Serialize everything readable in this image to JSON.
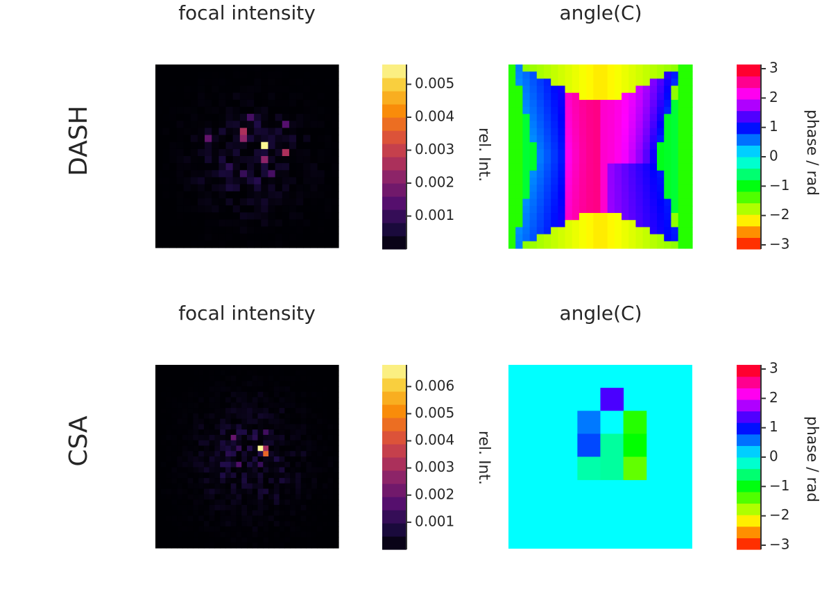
{
  "chart_data": [
    {
      "type": "heatmap",
      "row_label": "DASH",
      "title": "focal intensity",
      "colormap": "inferno",
      "colorbar": {
        "label": "rel. Int.",
        "range": [
          0,
          0.0056
        ],
        "ticks": [
          "0.001",
          "0.002",
          "0.003",
          "0.004",
          "0.005"
        ],
        "tick_values": [
          0.001,
          0.002,
          0.003,
          0.004,
          0.005
        ]
      },
      "grid": [
        26,
        26
      ],
      "peak": {
        "row": 11,
        "col": 15,
        "value": 0.0055
      },
      "bright_spots": [
        {
          "row": 9,
          "col": 12,
          "value": 0.0026
        },
        {
          "row": 10,
          "col": 12,
          "value": 0.0022
        },
        {
          "row": 12,
          "col": 18,
          "value": 0.0026
        },
        {
          "row": 13,
          "col": 15,
          "value": 0.0022
        },
        {
          "row": 10,
          "col": 7,
          "value": 0.0016
        },
        {
          "row": 8,
          "col": 18,
          "value": 0.0014
        },
        {
          "row": 15,
          "col": 16,
          "value": 0.0012
        },
        {
          "row": 7,
          "col": 13,
          "value": 0.0012
        }
      ]
    },
    {
      "type": "heatmap",
      "row_label": "DASH",
      "title": "angle(C)",
      "colormap": "hsv",
      "colorbar": {
        "label": "phase / rad",
        "range": [
          -3.1416,
          3.1416
        ],
        "ticks": [
          "3",
          "2",
          "1",
          "0",
          "−1",
          "−2",
          "−3"
        ],
        "tick_values": [
          3,
          2,
          1,
          0,
          -1,
          -2,
          -3
        ]
      },
      "grid": [
        26,
        26
      ],
      "description_values": {
        "center_phase": 2.4,
        "left_lobe_phase": 1.0,
        "right_lobe_phase": 0.8,
        "outer_phase_top": -2.2,
        "outer_phase_sides": -1.2
      }
    },
    {
      "type": "heatmap",
      "row_label": "CSA",
      "title": "focal intensity",
      "colormap": "inferno",
      "colorbar": {
        "label": "rel. Int.",
        "range": [
          0,
          0.0068
        ],
        "ticks": [
          "0.001",
          "0.002",
          "0.003",
          "0.004",
          "0.005",
          "0.006"
        ],
        "tick_values": [
          0.001,
          0.002,
          0.003,
          0.004,
          0.005,
          0.006
        ]
      },
      "grid": [
        34,
        34
      ],
      "peak": {
        "row": 15,
        "col": 19,
        "value": 0.0067
      },
      "bright_spots": [
        {
          "row": 16,
          "col": 20,
          "value": 0.0045
        },
        {
          "row": 15,
          "col": 20,
          "value": 0.003
        },
        {
          "row": 13,
          "col": 14,
          "value": 0.002
        },
        {
          "row": 18,
          "col": 15,
          "value": 0.0016
        },
        {
          "row": 12,
          "col": 20,
          "value": 0.0014
        }
      ]
    },
    {
      "type": "heatmap",
      "row_label": "CSA",
      "title": "angle(C)",
      "colormap": "hsv",
      "colorbar": {
        "label": "phase / rad",
        "range": [
          -3.1416,
          3.1416
        ],
        "ticks": [
          "3",
          "2",
          "1",
          "0",
          "−1",
          "−2",
          "−3"
        ],
        "tick_values": [
          3,
          2,
          1,
          0,
          -1,
          -2,
          -3
        ]
      },
      "grid": [
        8,
        8
      ],
      "background_phase": 0.0,
      "cells": [
        {
          "row": 1,
          "col": 4,
          "value": 1.35
        },
        {
          "row": 2,
          "col": 3,
          "value": 0.55
        },
        {
          "row": 2,
          "col": 4,
          "value": 0.0
        },
        {
          "row": 2,
          "col": 5,
          "value": -1.2
        },
        {
          "row": 3,
          "col": 3,
          "value": 0.75
        },
        {
          "row": 3,
          "col": 4,
          "value": -0.4
        },
        {
          "row": 3,
          "col": 5,
          "value": -1.05
        },
        {
          "row": 4,
          "col": 3,
          "value": -0.35
        },
        {
          "row": 4,
          "col": 4,
          "value": -0.4
        },
        {
          "row": 4,
          "col": 5,
          "value": -1.45
        }
      ]
    }
  ]
}
